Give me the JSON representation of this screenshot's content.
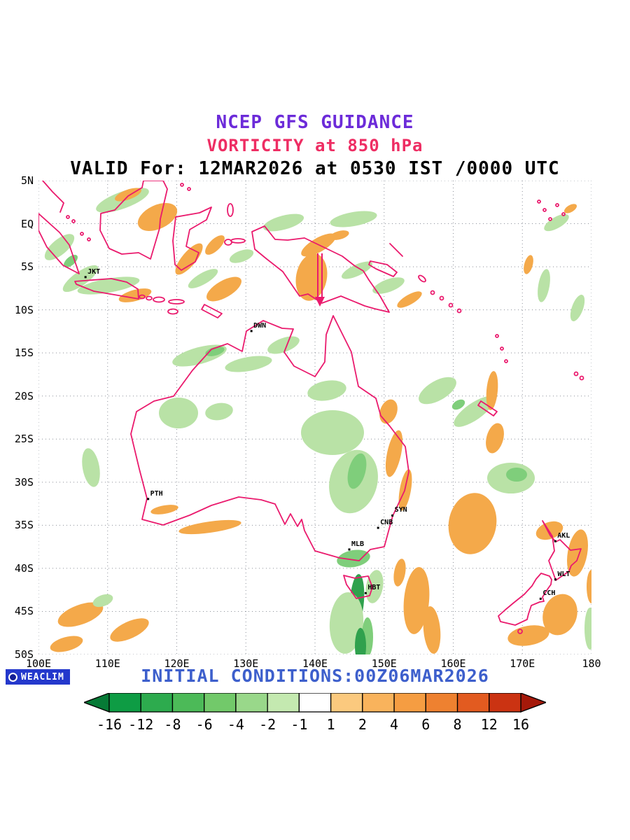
{
  "header": {
    "title": "NCEP GFS GUIDANCE",
    "subtitle": "VORTICITY at 850 hPa",
    "valid_line": "VALID For: 12MAR2026 at 0530 IST /0000 UTC"
  },
  "colors": {
    "title": "#6C2BD9",
    "subtitle": "#EE2D63",
    "valid": "#000000",
    "coastline": "#EA1A6D",
    "grid": "#8A8F98",
    "footer_text": "#3D5FCC",
    "logo_bg": "#2438CC",
    "neg_light": "#B9E2A6",
    "neg_mid": "#7FCE7B",
    "neg_dark": "#2FA14D",
    "pos_orange": "#F4A94A"
  },
  "map": {
    "lat_ticks": [
      {
        "label": "5N",
        "lat": 5
      },
      {
        "label": "EQ",
        "lat": 0
      },
      {
        "label": "5S",
        "lat": -5
      },
      {
        "label": "10S",
        "lat": -10
      },
      {
        "label": "15S",
        "lat": -15
      },
      {
        "label": "20S",
        "lat": -20
      },
      {
        "label": "25S",
        "lat": -25
      },
      {
        "label": "30S",
        "lat": -30
      },
      {
        "label": "35S",
        "lat": -35
      },
      {
        "label": "40S",
        "lat": -40
      },
      {
        "label": "45S",
        "lat": -45
      },
      {
        "label": "50S",
        "lat": -50
      }
    ],
    "lon_ticks": [
      {
        "label": "100E",
        "lon": 100
      },
      {
        "label": "110E",
        "lon": 110
      },
      {
        "label": "120E",
        "lon": 120
      },
      {
        "label": "130E",
        "lon": 130
      },
      {
        "label": "140E",
        "lon": 140
      },
      {
        "label": "150E",
        "lon": 150
      },
      {
        "label": "160E",
        "lon": 160
      },
      {
        "label": "170E",
        "lon": 170
      },
      {
        "label": "180",
        "lon": 180
      }
    ],
    "cities": [
      {
        "code": "JKT",
        "lon": 106.8,
        "lat": -6.2
      },
      {
        "code": "DWN",
        "lon": 130.8,
        "lat": -12.46
      },
      {
        "code": "PTH",
        "lon": 115.86,
        "lat": -31.95
      },
      {
        "code": "SYN",
        "lon": 151.2,
        "lat": -33.87
      },
      {
        "code": "CNB",
        "lon": 149.13,
        "lat": -35.3
      },
      {
        "code": "MLB",
        "lon": 144.96,
        "lat": -37.81
      },
      {
        "code": "HBT",
        "lon": 147.33,
        "lat": -42.88
      },
      {
        "code": "AKL",
        "lon": 174.76,
        "lat": -36.85
      },
      {
        "code": "WLT",
        "lon": 174.78,
        "lat": -41.29
      },
      {
        "code": "CCH",
        "lon": 172.64,
        "lat": -43.53
      }
    ]
  },
  "footer": {
    "logo_text": "WEACLIM",
    "initial_conditions": "INITIAL CONDITIONS:00Z06MAR2026"
  },
  "chart_data": {
    "type": "heatmap",
    "title": "NCEP GFS GUIDANCE",
    "variable": "Vorticity",
    "level": "850 hPa",
    "valid_time": "12MAR2026 at 0530 IST /0000 UTC",
    "initial_conditions": "00Z06MAR2026",
    "model": "NCEP GFS",
    "lon_range": [
      100,
      180
    ],
    "lat_range": [
      -50,
      5
    ],
    "grid_spacing_deg": {
      "lat": 5,
      "lon": 10
    },
    "legend_position": "bottom",
    "colorbar": {
      "boundaries": [
        -16,
        -12,
        -8,
        -6,
        -4,
        -2,
        -1,
        1,
        2,
        4,
        6,
        8,
        12,
        16
      ],
      "labels": [
        "-16",
        "-12",
        "-8",
        "-6",
        "-4",
        "-2",
        "-1",
        "1",
        "2",
        "4",
        "6",
        "8",
        "12",
        "16"
      ],
      "segment_colors": [
        "#0E9C44",
        "#2DAB4E",
        "#4CBA58",
        "#72C96A",
        "#99D88A",
        "#C4E9B0",
        "#FFFFFF",
        "#FBC97E",
        "#F9B35C",
        "#F59D42",
        "#EE8130",
        "#E25B20",
        "#CB3312"
      ],
      "arrow_left_color": "#067A36",
      "arrow_right_color": "#A5190A"
    },
    "station_labels": [
      "JKT",
      "DWN",
      "PTH",
      "SYN",
      "CNB",
      "MLB",
      "HBT",
      "AKL",
      "WLT",
      "CCH"
    ],
    "features": [
      {
        "region": "Maritime Continent / Indonesia 0-10S",
        "pattern": "alternating bands of negative (green) and positive (orange) vorticity"
      },
      {
        "region": "western New Guinea near 141E, 4-10S",
        "pattern": "strong positive (orange) anomaly with vertical cross-section marker arrow"
      },
      {
        "region": "central and eastern Australia",
        "pattern": "broad negative (green) vorticity with orange streaks near the east coast"
      },
      {
        "region": "Tasmania / Bass Strait",
        "pattern": "strong negative (dark green) band with positive (orange) band to the east over the Tasman Sea"
      },
      {
        "region": "southwest of Western Australia",
        "pattern": "scattered positive (orange) patches"
      },
      {
        "region": "New Zealand and surroundings",
        "pattern": "positive (orange) areas with a negative (green) pocket northeast of New Zealand"
      }
    ]
  }
}
